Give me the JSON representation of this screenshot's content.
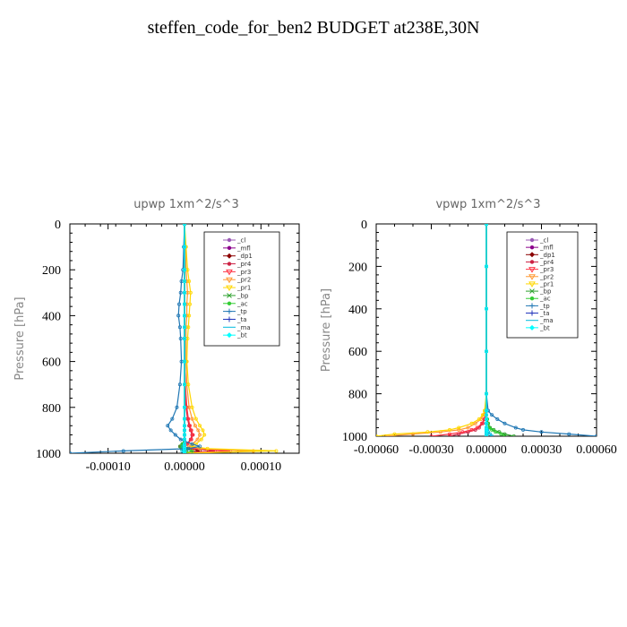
{
  "title": "steffen_code_for_ben2  BUDGET at238E,30N",
  "legend_entries": [
    "_cl",
    "_mfl",
    "_dp1",
    "_pr4",
    "_pr3",
    "_pr2",
    "_pr1",
    "_bp",
    "_ac",
    "_tp",
    "_ta",
    "_ma",
    "_bt"
  ],
  "series_colors": [
    "#9b59b6",
    "#8b008b",
    "#8b0000",
    "#cc2244",
    "#ff3344",
    "#ff9933",
    "#ffd700",
    "#2ca02c",
    "#33cc33",
    "#1f77b4",
    "#2233bb",
    "#00bbdd",
    "#00ffff"
  ],
  "chart_data": [
    {
      "type": "line",
      "title": "upwp   1xm^2/s^3",
      "ylabel": "Pressure [hPa]",
      "xlabel": "",
      "xlim": [
        -0.00015,
        0.00015
      ],
      "ylim": [
        1000,
        0
      ],
      "xticks": [
        -0.0001,
        0,
        0.0001
      ],
      "xtick_labels": [
        "-0.00010",
        "0.00000",
        "0.00010"
      ],
      "yticks": [
        0,
        200,
        400,
        600,
        800,
        1000
      ],
      "ytick_labels": [
        "0",
        "200",
        "400",
        "600",
        "800",
        "1000"
      ],
      "legend_position": "top-right",
      "y": [
        0,
        100,
        200,
        250,
        300,
        350,
        400,
        450,
        500,
        600,
        700,
        800,
        850,
        880,
        900,
        920,
        940,
        960,
        970,
        980,
        990,
        1000
      ],
      "series": [
        {
          "name": "_cl",
          "values": [
            0,
            0,
            0,
            0,
            0,
            0,
            0,
            0,
            0,
            0,
            0,
            0,
            0,
            0,
            0,
            0,
            0,
            0,
            0,
            0,
            0,
            0
          ]
        },
        {
          "name": "_mfl",
          "values": [
            0,
            0,
            0,
            0,
            0,
            0,
            0,
            0,
            0,
            0,
            0,
            0,
            0,
            0,
            0,
            0,
            0,
            0,
            0,
            0,
            2e-06,
            0
          ]
        },
        {
          "name": "_dp1",
          "values": [
            0,
            0,
            0,
            0,
            0,
            0,
            0,
            0,
            0,
            0,
            0,
            0,
            0,
            0,
            0,
            0,
            0,
            0,
            -5e-06,
            8e-06,
            2e-05,
            0
          ]
        },
        {
          "name": "_pr4",
          "values": [
            0,
            0,
            0,
            0,
            0,
            0,
            0,
            0,
            0,
            0,
            1e-06,
            2e-06,
            4e-06,
            6e-06,
            8e-06,
            1e-05,
            8e-06,
            3e-06,
            -5e-06,
            1e-05,
            4e-05,
            0
          ]
        },
        {
          "name": "_pr3",
          "values": [
            0,
            0,
            0,
            0,
            0,
            0,
            0,
            0,
            0,
            0,
            1e-06,
            3e-06,
            5e-06,
            7e-06,
            9e-06,
            1.1e-05,
            9e-06,
            4e-06,
            -4e-06,
            1.2e-05,
            6e-05,
            0
          ]
        },
        {
          "name": "_pr2",
          "values": [
            0,
            1e-06,
            2e-06,
            3e-06,
            4e-06,
            3e-06,
            3e-06,
            2e-06,
            2e-06,
            2e-06,
            3e-06,
            6e-06,
            1e-05,
            1.4e-05,
            1.8e-05,
            2e-05,
            1.7e-05,
            1e-05,
            6e-06,
            2e-05,
            9e-05,
            0
          ]
        },
        {
          "name": "_pr1",
          "values": [
            0,
            2e-06,
            4e-06,
            6e-06,
            8e-06,
            7e-06,
            6e-06,
            5e-06,
            4e-06,
            3e-06,
            5e-06,
            1e-05,
            1.5e-05,
            2e-05,
            2.4e-05,
            2.6e-05,
            2.2e-05,
            1.5e-05,
            1e-05,
            3e-05,
            0.00012,
            0
          ]
        },
        {
          "name": "_bp",
          "values": [
            0,
            0,
            0,
            0,
            0,
            0,
            0,
            0,
            0,
            0,
            0,
            0,
            0,
            0,
            0,
            0,
            0,
            -3e-06,
            -6e-06,
            -4e-06,
            2e-06,
            0
          ]
        },
        {
          "name": "_ac",
          "values": [
            0,
            0,
            0,
            0,
            0,
            0,
            0,
            0,
            0,
            0,
            0,
            0,
            0,
            0,
            0,
            0,
            0,
            -2e-06,
            -4e-06,
            3e-06,
            1e-05,
            0
          ]
        },
        {
          "name": "_tp",
          "values": [
            0,
            -1e-06,
            -2e-06,
            -4e-06,
            -5e-06,
            -7e-06,
            -8e-06,
            -6e-06,
            -5e-06,
            -4e-06,
            -6e-06,
            -1e-05,
            -1.6e-05,
            -2.2e-05,
            -1.8e-05,
            -1.2e-05,
            -5e-06,
            1e-05,
            2e-05,
            5e-06,
            -8e-05,
            -0.00015
          ]
        },
        {
          "name": "_ta",
          "values": [
            0,
            0,
            0,
            0,
            0,
            0,
            0,
            0,
            0,
            0,
            0,
            0,
            0,
            0,
            0,
            0,
            0,
            0,
            0,
            0,
            0,
            0
          ]
        },
        {
          "name": "_ma",
          "values": [
            0,
            0,
            0,
            0,
            0,
            0,
            0,
            0,
            0,
            0,
            0,
            0,
            0,
            0,
            0,
            0,
            0,
            0,
            -2e-06,
            0,
            -3e-06,
            0
          ]
        },
        {
          "name": "_bt",
          "values": [
            0,
            0,
            0,
            0,
            0,
            0,
            0,
            0,
            0,
            0,
            0,
            0,
            0,
            0,
            0,
            0,
            0,
            0,
            0,
            0,
            0,
            0
          ]
        }
      ]
    },
    {
      "type": "line",
      "title": "vpwp   1xm^2/s^3",
      "ylabel": "Pressure [hPa]",
      "xlabel": "",
      "xlim": [
        -0.0006,
        0.0006
      ],
      "ylim": [
        1000,
        0
      ],
      "xticks": [
        -0.0006,
        -0.0003,
        0,
        0.0003,
        0.0006
      ],
      "xtick_labels": [
        "-0.00060",
        "-0.00030",
        "0.00000",
        "0.00030",
        "0.00060"
      ],
      "yticks": [
        0,
        200,
        400,
        600,
        800,
        1000
      ],
      "ytick_labels": [
        "0",
        "200",
        "400",
        "600",
        "800",
        "1000"
      ],
      "legend_position": "top-right",
      "y": [
        0,
        200,
        400,
        600,
        800,
        880,
        900,
        920,
        940,
        960,
        970,
        980,
        990,
        1000
      ],
      "series": [
        {
          "name": "_cl",
          "values": [
            0,
            0,
            0,
            0,
            0,
            0,
            0,
            0,
            0,
            0,
            0,
            0,
            0,
            0
          ]
        },
        {
          "name": "_mfl",
          "values": [
            0,
            0,
            0,
            0,
            0,
            0,
            0,
            0,
            0,
            0,
            0,
            0,
            0,
            0
          ]
        },
        {
          "name": "_dp1",
          "values": [
            0,
            0,
            0,
            0,
            0,
            0,
            0,
            0,
            0,
            0,
            0,
            0,
            0,
            0
          ]
        },
        {
          "name": "_pr4",
          "values": [
            0,
            0,
            0,
            0,
            0,
            0,
            -5e-06,
            -1e-05,
            -2e-05,
            -4e-05,
            -6e-05,
            -0.0001,
            -0.00015,
            -0.0002
          ]
        },
        {
          "name": "_pr3",
          "values": [
            0,
            0,
            0,
            0,
            0,
            0,
            -6e-06,
            -1.2e-05,
            -2.5e-05,
            -5e-05,
            -8e-05,
            -0.00013,
            -0.0002,
            -0.0003
          ]
        },
        {
          "name": "_pr2",
          "values": [
            0,
            0,
            0,
            0,
            0,
            -5e-06,
            -1.5e-05,
            -3e-05,
            -6e-05,
            -0.0001,
            -0.00015,
            -0.00025,
            -0.0004,
            -0.00055
          ]
        },
        {
          "name": "_pr1",
          "values": [
            0,
            0,
            0,
            0,
            0,
            -1e-05,
            -2e-05,
            -4e-05,
            -8e-05,
            -0.00015,
            -0.0002,
            -0.00032,
            -0.0005,
            -0.0006
          ]
        },
        {
          "name": "_bp",
          "values": [
            0,
            0,
            0,
            0,
            0,
            0,
            0,
            5e-06,
            1e-05,
            2e-05,
            4e-05,
            7e-05,
            0.0001,
            0.00015
          ]
        },
        {
          "name": "_ac",
          "values": [
            0,
            0,
            0,
            0,
            0,
            0,
            0,
            4e-06,
            8e-06,
            1.5e-05,
            3e-05,
            5e-05,
            8e-05,
            0.0001
          ]
        },
        {
          "name": "_tp",
          "values": [
            0,
            0,
            0,
            0,
            0,
            1e-05,
            3e-05,
            6e-05,
            0.0001,
            0.00016,
            0.0002,
            0.0003,
            0.00045,
            0.0006
          ]
        },
        {
          "name": "_ta",
          "values": [
            0,
            0,
            0,
            0,
            0,
            0,
            0,
            0,
            0,
            0,
            0,
            0,
            0,
            0
          ]
        },
        {
          "name": "_ma",
          "values": [
            0,
            0,
            0,
            0,
            0,
            0,
            0,
            0,
            0,
            0,
            5e-06,
            1e-05,
            2e-05,
            3e-05
          ]
        },
        {
          "name": "_bt",
          "values": [
            0,
            0,
            0,
            0,
            0,
            0,
            0,
            0,
            0,
            0,
            0,
            0,
            0,
            0
          ]
        }
      ]
    }
  ]
}
